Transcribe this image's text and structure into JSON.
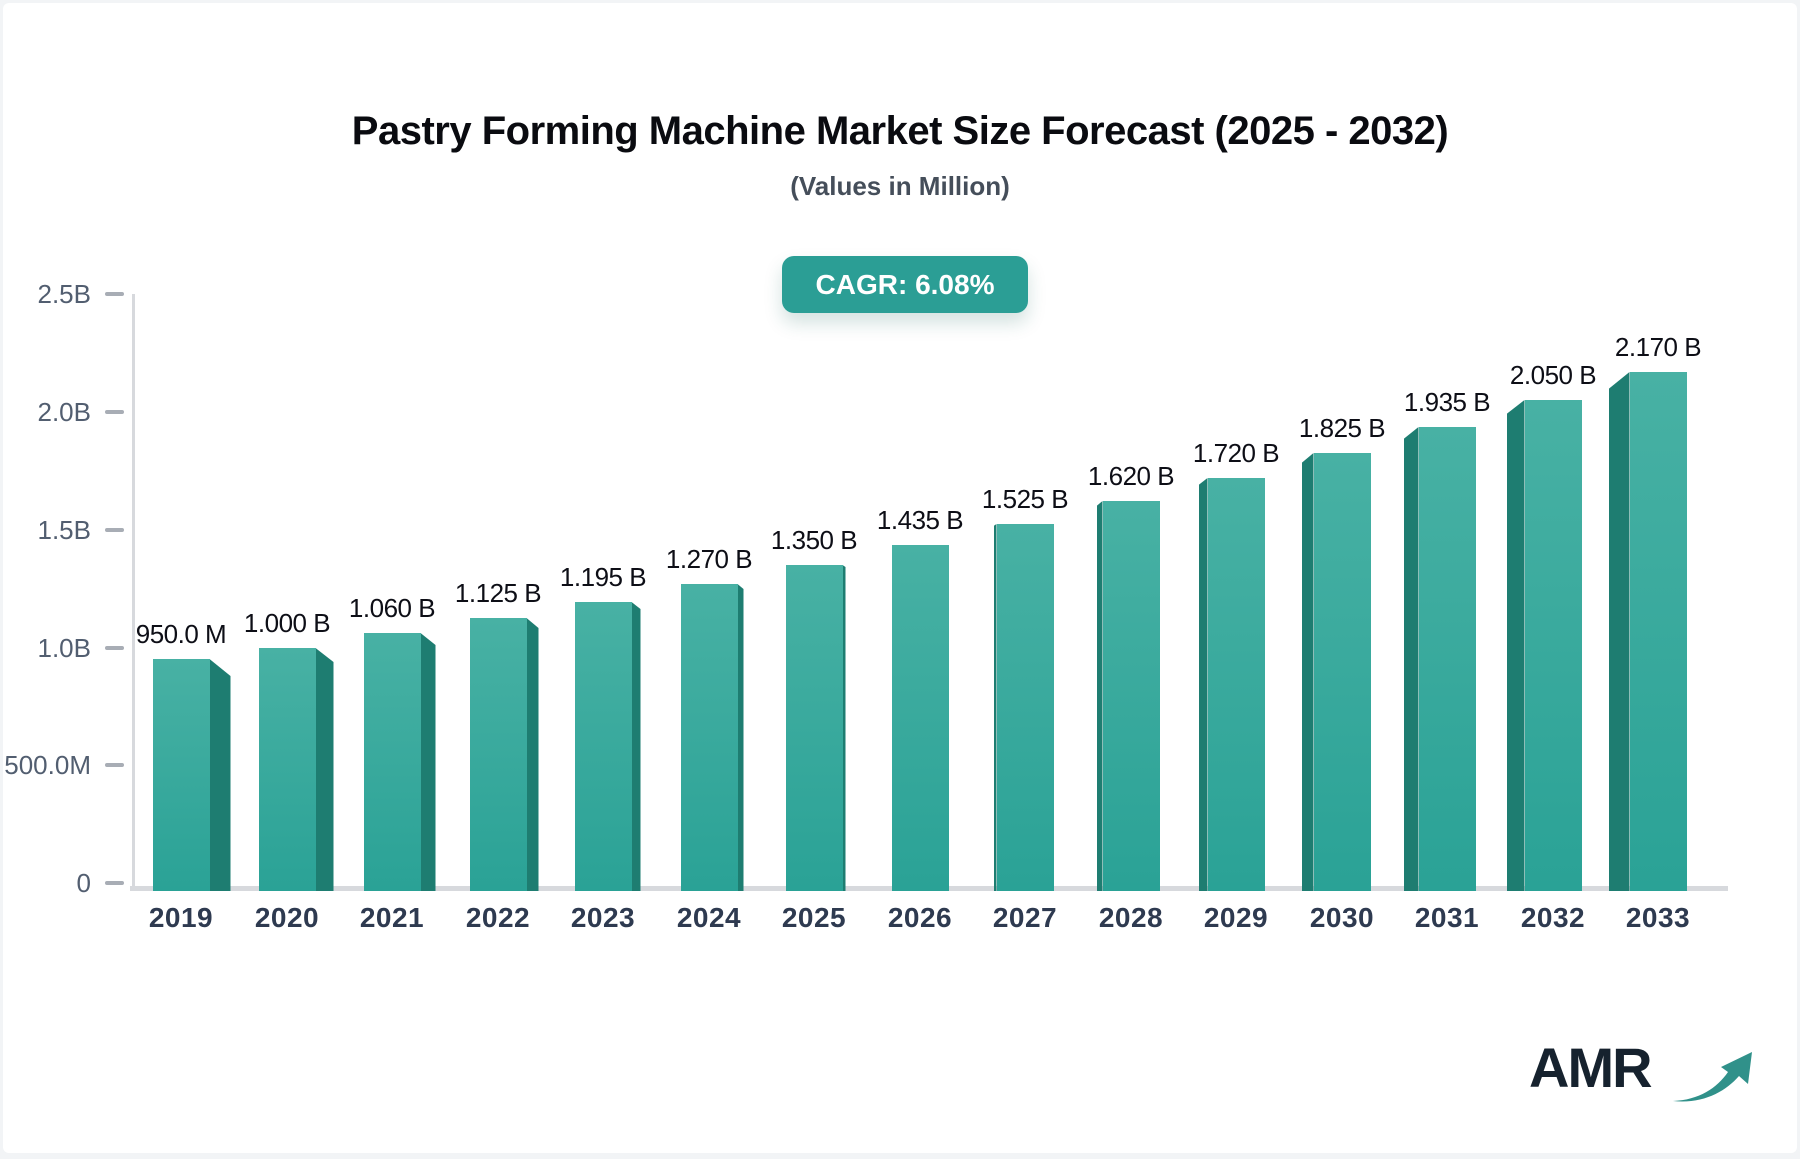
{
  "header": {
    "title": "Pastry Forming Machine Market Size Forecast (2025 - 2032)",
    "subtitle": "(Values in Million)",
    "cagr_badge": "CAGR: 6.08%"
  },
  "footer": {
    "logo_text": "AMR",
    "logo_arrow_icon": "trend-arrow-icon"
  },
  "colors": {
    "bar_face_top": "#48b1a4",
    "bar_face_bottom": "#2aa296",
    "bar_side": "#1e7d71",
    "badge_bg": "#2b9e95",
    "axis_line": "#d7d9dd",
    "tick_mark": "#a8adb5",
    "logo_arrow": "#30918a"
  },
  "chart_data": {
    "type": "bar",
    "style": "3d-perspective",
    "title": "Pastry Forming Machine Market Size Forecast (2025 - 2032)",
    "subtitle": "(Values in Million)",
    "cagr": "6.08%",
    "categories": [
      "2019",
      "2020",
      "2021",
      "2022",
      "2023",
      "2024",
      "2025",
      "2026",
      "2027",
      "2028",
      "2029",
      "2030",
      "2031",
      "2032",
      "2033"
    ],
    "series": [
      {
        "name": "Market Size",
        "unit": "USD Billion",
        "values_billion": [
          0.95,
          1.0,
          1.06,
          1.125,
          1.195,
          1.27,
          1.35,
          1.435,
          1.525,
          1.62,
          1.72,
          1.825,
          1.935,
          2.05,
          2.17
        ]
      }
    ],
    "bar_labels": [
      "950.0 M",
      "1.000 B",
      "1.060 B",
      "1.125 B",
      "1.195 B",
      "1.270 B",
      "1.350 B",
      "1.435 B",
      "1.525 B",
      "1.620 B",
      "1.720 B",
      "1.825 B",
      "1.935 B",
      "2.050 B",
      "2.170 B"
    ],
    "xlabel": "",
    "ylabel": "",
    "ylim": [
      0,
      2.5
    ],
    "y_ticks": [
      {
        "label": "2.5B",
        "value": 2.5
      },
      {
        "label": "2.0B",
        "value": 2.0
      },
      {
        "label": "1.5B",
        "value": 1.5
      },
      {
        "label": "1.0B",
        "value": 1.0
      },
      {
        "label": "500.0M",
        "value": 0.5
      },
      {
        "label": "0",
        "value": 0.0
      }
    ],
    "grid": false,
    "legend": "none"
  }
}
